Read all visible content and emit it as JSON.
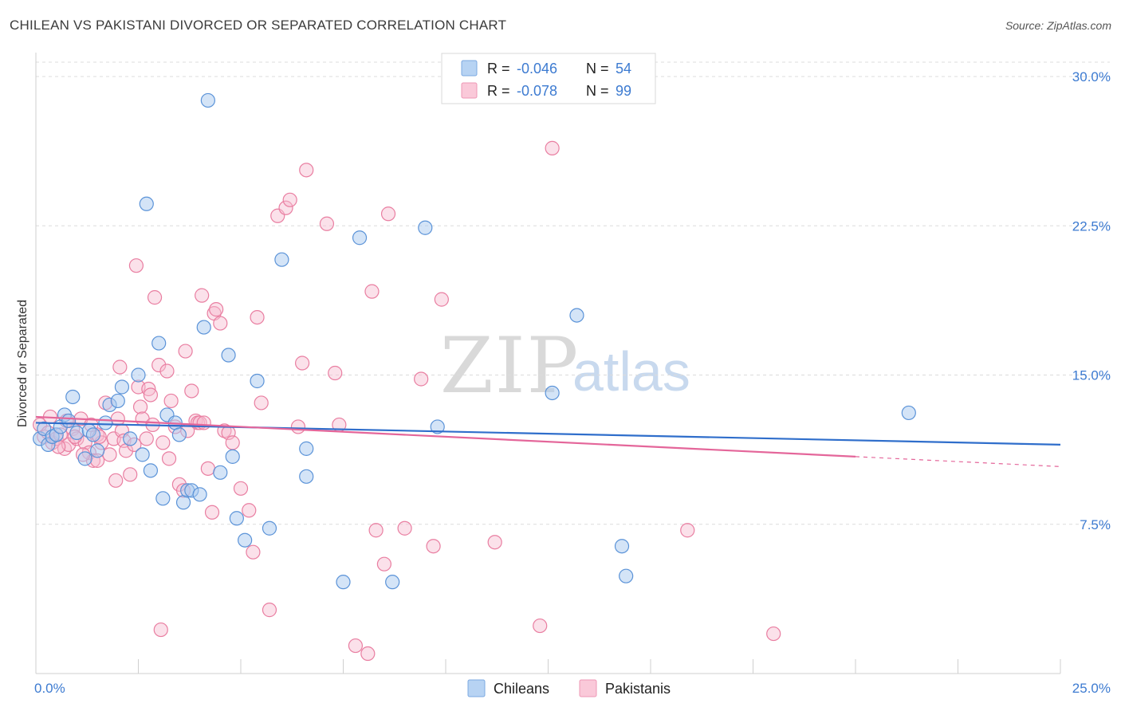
{
  "title": "CHILEAN VS PAKISTANI DIVORCED OR SEPARATED CORRELATION CHART",
  "source": "Source: ZipAtlas.com",
  "watermark": {
    "zip": "ZIP",
    "atlas": "atlas"
  },
  "legend": {
    "r_label": "R =",
    "n_label": "N =",
    "rows": [
      {
        "r": "-0.046",
        "n": "54",
        "color": "#9dc3ef"
      },
      {
        "r": "-0.078",
        "n": "99",
        "color": "#f5b6ca"
      }
    ]
  },
  "bottom_legend": [
    "Chileans",
    "Pakistanis"
  ],
  "colors": {
    "chileans_fill": "#aac9f0",
    "chileans_stroke": "#5b93d8",
    "chileans_line": "#2f6ecb",
    "pakistanis_fill": "#f7bcd0",
    "pakistanis_stroke": "#e97ea1",
    "pakistanis_line": "#e4669a",
    "tick_text": "#3d7bd1"
  },
  "chart_data": {
    "type": "scatter",
    "title": "CHILEAN VS PAKISTANI DIVORCED OR SEPARATED CORRELATION CHART",
    "xlabel": "",
    "ylabel": "Divorced or Separated",
    "xlim": [
      0,
      25
    ],
    "ylim": [
      0,
      30
    ],
    "x_tick_labels": [
      "0.0%",
      "25.0%"
    ],
    "y_ticks": [
      {
        "value": 7.5,
        "label": "7.5%"
      },
      {
        "value": 15,
        "label": "15.0%"
      },
      {
        "value": 22.5,
        "label": "22.5%"
      },
      {
        "value": 30,
        "label": "30.0%"
      }
    ],
    "grid": true,
    "legend_position": "top-center",
    "series": [
      {
        "name": "Chileans",
        "r": -0.046,
        "n": 54,
        "trend": {
          "x": [
            0,
            25
          ],
          "y": [
            12.6,
            11.5
          ]
        },
        "points": [
          [
            0.1,
            11.8
          ],
          [
            0.2,
            12.3
          ],
          [
            0.3,
            11.5
          ],
          [
            0.4,
            11.9
          ],
          [
            0.5,
            12.0
          ],
          [
            0.6,
            12.4
          ],
          [
            0.7,
            13.0
          ],
          [
            0.8,
            12.7
          ],
          [
            0.9,
            13.9
          ],
          [
            1.0,
            12.1
          ],
          [
            1.2,
            10.8
          ],
          [
            1.3,
            12.2
          ],
          [
            1.4,
            12.0
          ],
          [
            1.5,
            11.2
          ],
          [
            1.7,
            12.6
          ],
          [
            1.8,
            13.5
          ],
          [
            2.0,
            13.7
          ],
          [
            2.1,
            14.4
          ],
          [
            2.3,
            11.8
          ],
          [
            2.5,
            15.0
          ],
          [
            2.6,
            11.0
          ],
          [
            2.7,
            23.6
          ],
          [
            2.8,
            10.2
          ],
          [
            3.0,
            16.6
          ],
          [
            3.1,
            8.8
          ],
          [
            3.2,
            13.0
          ],
          [
            3.4,
            12.6
          ],
          [
            3.5,
            12.0
          ],
          [
            3.6,
            8.6
          ],
          [
            3.7,
            9.2
          ],
          [
            3.8,
            9.2
          ],
          [
            4.0,
            9.0
          ],
          [
            4.1,
            17.4
          ],
          [
            4.2,
            28.8
          ],
          [
            4.5,
            10.1
          ],
          [
            4.7,
            16.0
          ],
          [
            4.8,
            10.9
          ],
          [
            4.9,
            7.8
          ],
          [
            5.1,
            6.7
          ],
          [
            5.4,
            14.7
          ],
          [
            5.7,
            7.3
          ],
          [
            6.0,
            20.8
          ],
          [
            6.6,
            11.3
          ],
          [
            6.6,
            9.9
          ],
          [
            7.5,
            4.6
          ],
          [
            7.9,
            21.9
          ],
          [
            8.7,
            4.6
          ],
          [
            9.5,
            22.4
          ],
          [
            9.8,
            12.4
          ],
          [
            12.6,
            14.1
          ],
          [
            13.2,
            18.0
          ],
          [
            14.3,
            6.4
          ],
          [
            14.4,
            4.9
          ],
          [
            21.3,
            13.1
          ]
        ]
      },
      {
        "name": "Pakistanis",
        "r": -0.078,
        "n": 99,
        "trend": {
          "x": [
            0,
            20
          ],
          "y": [
            12.9,
            10.9
          ]
        },
        "trend_dashed": {
          "x": [
            20,
            25
          ],
          "y": [
            10.9,
            10.4
          ]
        },
        "points": [
          [
            0.1,
            12.5
          ],
          [
            0.2,
            11.9
          ],
          [
            0.3,
            12.1
          ],
          [
            0.4,
            11.6
          ],
          [
            0.5,
            11.8
          ],
          [
            0.6,
            12.0
          ],
          [
            0.7,
            11.3
          ],
          [
            0.8,
            11.5
          ],
          [
            0.9,
            12.3
          ],
          [
            1.0,
            11.8
          ],
          [
            1.1,
            12.8
          ],
          [
            1.2,
            11.6
          ],
          [
            1.3,
            11.1
          ],
          [
            1.4,
            10.7
          ],
          [
            1.5,
            12.0
          ],
          [
            1.5,
            10.7
          ],
          [
            1.6,
            11.6
          ],
          [
            1.7,
            13.6
          ],
          [
            1.8,
            11.0
          ],
          [
            1.9,
            11.8
          ],
          [
            1.95,
            9.7
          ],
          [
            2.0,
            12.8
          ],
          [
            2.05,
            15.4
          ],
          [
            2.1,
            12.2
          ],
          [
            2.15,
            11.7
          ],
          [
            2.2,
            11.2
          ],
          [
            2.3,
            10.0
          ],
          [
            2.4,
            11.5
          ],
          [
            2.45,
            20.5
          ],
          [
            2.5,
            14.4
          ],
          [
            2.55,
            13.4
          ],
          [
            2.6,
            12.8
          ],
          [
            2.7,
            11.8
          ],
          [
            2.75,
            14.3
          ],
          [
            2.8,
            14.0
          ],
          [
            2.85,
            12.5
          ],
          [
            2.9,
            18.9
          ],
          [
            3.0,
            15.5
          ],
          [
            3.05,
            2.2
          ],
          [
            3.1,
            11.6
          ],
          [
            3.2,
            15.2
          ],
          [
            3.25,
            10.8
          ],
          [
            3.3,
            13.7
          ],
          [
            3.4,
            12.4
          ],
          [
            3.5,
            9.5
          ],
          [
            3.6,
            9.2
          ],
          [
            3.65,
            16.2
          ],
          [
            3.7,
            12.2
          ],
          [
            3.8,
            14.2
          ],
          [
            3.9,
            12.7
          ],
          [
            3.95,
            12.6
          ],
          [
            4.0,
            12.6
          ],
          [
            4.05,
            19.0
          ],
          [
            4.1,
            12.6
          ],
          [
            4.2,
            10.3
          ],
          [
            4.3,
            8.1
          ],
          [
            4.35,
            18.1
          ],
          [
            4.4,
            18.3
          ],
          [
            4.5,
            17.6
          ],
          [
            4.6,
            12.2
          ],
          [
            4.7,
            12.1
          ],
          [
            4.8,
            11.6
          ],
          [
            5.0,
            9.3
          ],
          [
            5.2,
            8.2
          ],
          [
            5.3,
            6.1
          ],
          [
            5.4,
            17.9
          ],
          [
            5.5,
            13.6
          ],
          [
            5.7,
            3.2
          ],
          [
            5.9,
            23.0
          ],
          [
            6.1,
            23.4
          ],
          [
            6.2,
            23.8
          ],
          [
            6.4,
            12.4
          ],
          [
            6.5,
            15.6
          ],
          [
            6.6,
            25.3
          ],
          [
            7.1,
            22.6
          ],
          [
            7.3,
            15.1
          ],
          [
            7.4,
            12.5
          ],
          [
            7.8,
            1.4
          ],
          [
            8.1,
            1.0
          ],
          [
            8.2,
            19.2
          ],
          [
            8.3,
            7.2
          ],
          [
            8.5,
            5.5
          ],
          [
            8.6,
            23.1
          ],
          [
            9.0,
            7.3
          ],
          [
            9.4,
            14.8
          ],
          [
            9.7,
            6.4
          ],
          [
            9.9,
            18.8
          ],
          [
            11.2,
            6.6
          ],
          [
            12.3,
            2.4
          ],
          [
            12.6,
            26.4
          ],
          [
            15.9,
            7.2
          ],
          [
            18.0,
            2.0
          ],
          [
            0.35,
            12.9
          ],
          [
            0.55,
            11.4
          ],
          [
            0.75,
            12.7
          ],
          [
            0.95,
            11.9
          ],
          [
            1.15,
            11.0
          ],
          [
            1.35,
            12.5
          ],
          [
            1.55,
            11.9
          ]
        ]
      }
    ]
  }
}
